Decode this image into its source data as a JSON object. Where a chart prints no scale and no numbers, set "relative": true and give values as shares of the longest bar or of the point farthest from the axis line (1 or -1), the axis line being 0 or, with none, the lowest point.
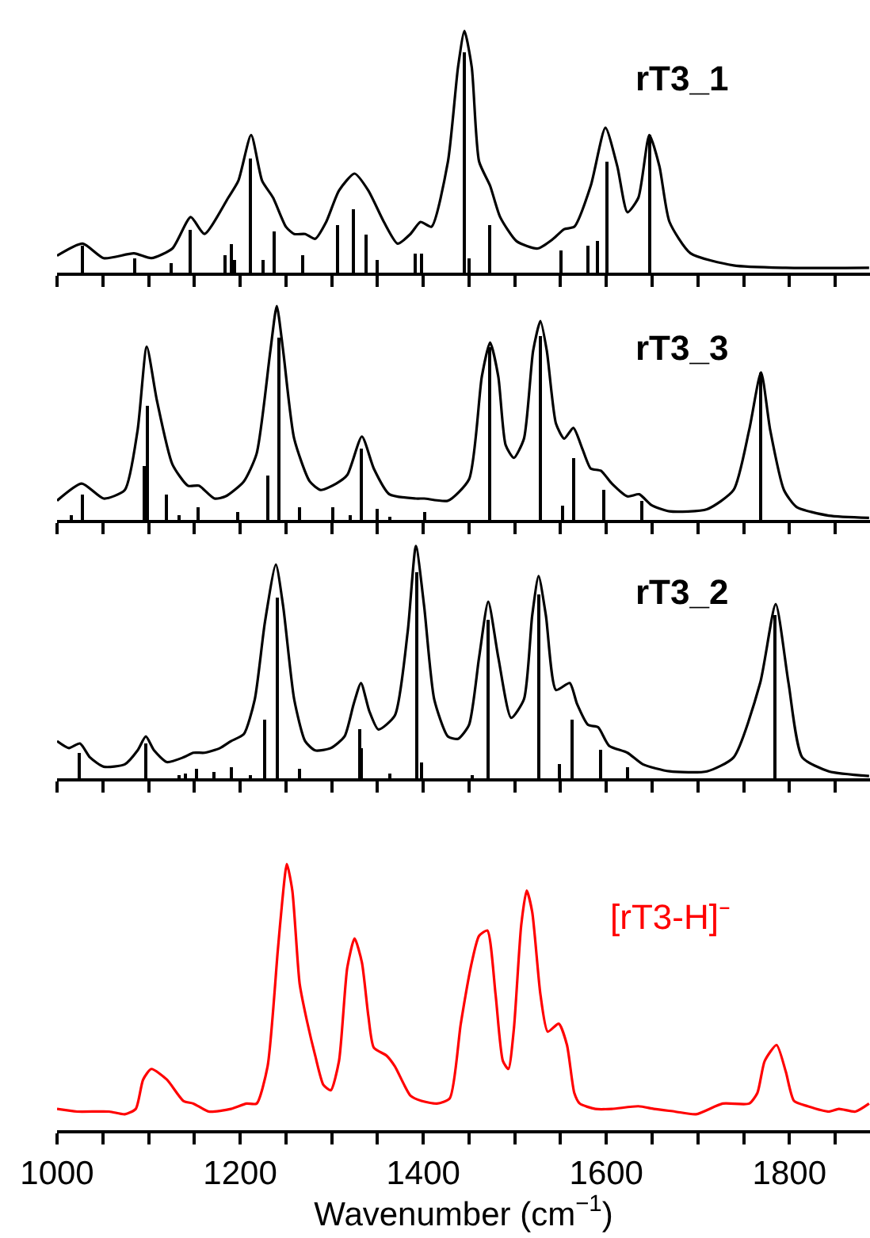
{
  "chart_data": [
    {
      "type": "line",
      "relative": true,
      "xlim": [
        1000,
        1888
      ],
      "xticks": [
        1000,
        {
          "value": 1050,
          "label": null
        },
        {
          "value": 1100,
          "label": null
        },
        {
          "value": 1150,
          "label": null
        },
        {
          "value": 1200,
          "label": null
        },
        {
          "value": 1250,
          "label": null
        },
        {
          "value": 1300,
          "label": null
        },
        {
          "value": 1350,
          "label": null
        },
        {
          "value": 1400,
          "label": null
        },
        {
          "value": 1450,
          "label": null
        },
        {
          "value": 1500,
          "label": null
        },
        {
          "value": 1550,
          "label": null
        },
        {
          "value": 1600,
          "label": null
        },
        {
          "value": 1650,
          "label": null
        },
        {
          "value": 1700,
          "label": null
        },
        {
          "value": 1750,
          "label": null
        },
        {
          "value": 1800,
          "label": null
        },
        {
          "value": 1850,
          "label": null
        }
      ],
      "tick_labels": false,
      "legend": false,
      "series": [
        {
          "name": "rT3_1",
          "color": "#000000",
          "x": [
            1000,
            1028,
            1051,
            1084,
            1103,
            1126,
            1146,
            1161,
            1187,
            1198,
            1212,
            1224,
            1236,
            1250,
            1259,
            1271,
            1282,
            1294,
            1308,
            1325,
            1340,
            1357,
            1372,
            1386,
            1397,
            1409,
            1427,
            1438,
            1445,
            1453,
            1461,
            1473,
            1484,
            1502,
            1525,
            1542,
            1554,
            1565,
            1583,
            1599,
            1612,
            1623,
            1635,
            1647,
            1658,
            1669,
            1692,
            1739,
            1796,
            1887
          ],
          "values": [
            0.07,
            0.12,
            0.06,
            0.08,
            0.06,
            0.1,
            0.23,
            0.16,
            0.31,
            0.38,
            0.57,
            0.38,
            0.31,
            0.19,
            0.16,
            0.16,
            0.14,
            0.21,
            0.34,
            0.41,
            0.34,
            0.21,
            0.12,
            0.16,
            0.21,
            0.19,
            0.46,
            0.85,
            1,
            0.85,
            0.46,
            0.36,
            0.23,
            0.13,
            0.1,
            0.14,
            0.18,
            0.19,
            0.36,
            0.6,
            0.44,
            0.25,
            0.31,
            0.57,
            0.44,
            0.21,
            0.08,
            0.03,
            0.02,
            0.02
          ]
        },
        {
          "type": "bar",
          "color": "#000000",
          "x": [
            1028,
            1084,
            1124,
            1146,
            1184,
            1190,
            1194,
            1212,
            1225,
            1237,
            1269,
            1306,
            1324,
            1338,
            1350,
            1392,
            1398,
            1445,
            1450,
            1473,
            1551,
            1580,
            1591,
            1601,
            1648
          ],
          "values": [
            0.11,
            0.06,
            0.04,
            0.18,
            0.07,
            0.12,
            0.05,
            0.47,
            0.05,
            0.17,
            0.07,
            0.2,
            0.26,
            0.16,
            0.05,
            0.08,
            0.08,
            0.91,
            0.06,
            0.2,
            0.09,
            0.11,
            0.13,
            0.46,
            0.57
          ]
        }
      ]
    },
    {
      "type": "line",
      "relative": true,
      "xlim": [
        1000,
        1888
      ],
      "xticks": [
        1000,
        {
          "value": 1050,
          "label": null
        },
        {
          "value": 1100,
          "label": null
        },
        {
          "value": 1150,
          "label": null
        },
        {
          "value": 1200,
          "label": null
        },
        {
          "value": 1250,
          "label": null
        },
        {
          "value": 1300,
          "label": null
        },
        {
          "value": 1350,
          "label": null
        },
        {
          "value": 1400,
          "label": null
        },
        {
          "value": 1450,
          "label": null
        },
        {
          "value": 1500,
          "label": null
        },
        {
          "value": 1550,
          "label": null
        },
        {
          "value": 1600,
          "label": null
        },
        {
          "value": 1650,
          "label": null
        },
        {
          "value": 1700,
          "label": null
        },
        {
          "value": 1750,
          "label": null
        },
        {
          "value": 1800,
          "label": null
        },
        {
          "value": 1850,
          "label": null
        }
      ],
      "tick_labels": false,
      "legend": false,
      "series": [
        {
          "name": "rT3_3",
          "color": "#000000",
          "x": [
            1000,
            1027,
            1051,
            1074,
            1088,
            1098,
            1109,
            1126,
            1143,
            1155,
            1172,
            1184,
            1204,
            1218,
            1233,
            1240,
            1247,
            1259,
            1276,
            1288,
            1305,
            1317,
            1333,
            1346,
            1363,
            1392,
            1401,
            1427,
            1450,
            1464,
            1473,
            1482,
            1490,
            1499,
            1510,
            1520,
            1528,
            1535,
            1545,
            1554,
            1564,
            1574,
            1583,
            1594,
            1606,
            1623,
            1636,
            1649,
            1669,
            1710,
            1739,
            1756,
            1769,
            1779,
            1794,
            1808,
            1843,
            1887
          ],
          "values": [
            0.09,
            0.17,
            0.1,
            0.14,
            0.42,
            0.81,
            0.56,
            0.26,
            0.16,
            0.16,
            0.1,
            0.11,
            0.18,
            0.31,
            0.79,
            1,
            0.79,
            0.38,
            0.18,
            0.14,
            0.17,
            0.21,
            0.39,
            0.24,
            0.12,
            0.1,
            0.1,
            0.09,
            0.19,
            0.67,
            0.83,
            0.67,
            0.35,
            0.29,
            0.38,
            0.79,
            0.93,
            0.79,
            0.45,
            0.38,
            0.43,
            0.33,
            0.24,
            0.23,
            0.17,
            0.11,
            0.12,
            0.07,
            0.04,
            0.05,
            0.14,
            0.42,
            0.69,
            0.42,
            0.14,
            0.06,
            0.02,
            0.01
          ]
        },
        {
          "type": "bar",
          "color": "#000000",
          "x": [
            1015,
            1027,
            1095,
            1098,
            1119,
            1133,
            1154,
            1197,
            1230,
            1242,
            1265,
            1301,
            1321,
            1333,
            1349,
            1363,
            1401,
            1473,
            1528,
            1553,
            1565,
            1597,
            1638,
            1769
          ],
          "values": [
            0.02,
            0.12,
            0.25,
            0.53,
            0.12,
            0.02,
            0.06,
            0.04,
            0.21,
            0.85,
            0.06,
            0.06,
            0.02,
            0.33,
            0.05,
            0.01,
            0.04,
            0.81,
            0.86,
            0.07,
            0.29,
            0.14,
            0.09,
            0.69
          ]
        }
      ]
    },
    {
      "type": "line",
      "relative": true,
      "xlim": [
        1000,
        1888
      ],
      "xticks": [
        1000,
        {
          "value": 1050,
          "label": null
        },
        {
          "value": 1100,
          "label": null
        },
        {
          "value": 1150,
          "label": null
        },
        {
          "value": 1200,
          "label": null
        },
        {
          "value": 1250,
          "label": null
        },
        {
          "value": 1300,
          "label": null
        },
        {
          "value": 1350,
          "label": null
        },
        {
          "value": 1400,
          "label": null
        },
        {
          "value": 1450,
          "label": null
        },
        {
          "value": 1500,
          "label": null
        },
        {
          "value": 1550,
          "label": null
        },
        {
          "value": 1600,
          "label": null
        },
        {
          "value": 1650,
          "label": null
        },
        {
          "value": 1700,
          "label": null
        },
        {
          "value": 1750,
          "label": null
        },
        {
          "value": 1800,
          "label": null
        },
        {
          "value": 1850,
          "label": null
        }
      ],
      "tick_labels": false,
      "legend": false,
      "series": [
        {
          "name": "rT3_2",
          "color": "#000000",
          "x": [
            1000,
            1013,
            1025,
            1036,
            1051,
            1074,
            1088,
            1097,
            1106,
            1120,
            1138,
            1149,
            1161,
            1178,
            1190,
            1204,
            1216,
            1227,
            1239,
            1247,
            1259,
            1271,
            1282,
            1299,
            1314,
            1324,
            1332,
            1341,
            1351,
            1369,
            1383,
            1392,
            1401,
            1412,
            1427,
            1438,
            1450,
            1461,
            1471,
            1482,
            1496,
            1510,
            1519,
            1526,
            1534,
            1545,
            1560,
            1568,
            1580,
            1591,
            1603,
            1623,
            1640,
            1669,
            1710,
            1739,
            1768,
            1785,
            1799,
            1814,
            1843,
            1887
          ],
          "values": [
            0.16,
            0.13,
            0.15,
            0.09,
            0.05,
            0.06,
            0.12,
            0.18,
            0.12,
            0.07,
            0.09,
            0.11,
            0.11,
            0.13,
            0.16,
            0.19,
            0.34,
            0.67,
            0.92,
            0.74,
            0.34,
            0.16,
            0.12,
            0.13,
            0.18,
            0.32,
            0.41,
            0.29,
            0.21,
            0.27,
            0.63,
            1,
            0.74,
            0.34,
            0.18,
            0.17,
            0.23,
            0.52,
            0.76,
            0.52,
            0.26,
            0.34,
            0.7,
            0.87,
            0.7,
            0.38,
            0.41,
            0.32,
            0.23,
            0.22,
            0.14,
            0.11,
            0.06,
            0.03,
            0.03,
            0.09,
            0.41,
            0.75,
            0.41,
            0.09,
            0.03,
            0.01
          ]
        },
        {
          "type": "bar",
          "color": "#000000",
          "x": [
            1025,
            1097,
            1133,
            1140,
            1152,
            1171,
            1190,
            1211,
            1226,
            1240,
            1265,
            1330,
            1333,
            1364,
            1393,
            1399,
            1454,
            1471,
            1526,
            1549,
            1563,
            1593,
            1623,
            1785
          ],
          "values": [
            0.11,
            0.15,
            0.01,
            0.02,
            0.04,
            0.03,
            0.05,
            0.01,
            0.25,
            0.78,
            0.04,
            0.21,
            0.13,
            0.02,
            0.89,
            0.07,
            0.01,
            0.68,
            0.79,
            0.06,
            0.25,
            0.12,
            0.05,
            0.7
          ]
        }
      ]
    },
    {
      "type": "line",
      "relative": true,
      "xlabel": "Wavenumber (cm$^{−1}$)",
      "xlim": [
        1000,
        1888
      ],
      "xticks": [
        1000,
        {
          "value": 1050,
          "label": null
        },
        {
          "value": 1100,
          "label": null
        },
        {
          "value": 1150,
          "label": null
        },
        1200,
        {
          "value": 1250,
          "label": null
        },
        {
          "value": 1300,
          "label": null
        },
        {
          "value": 1350,
          "label": null
        },
        1400,
        {
          "value": 1450,
          "label": null
        },
        {
          "value": 1500,
          "label": null
        },
        {
          "value": 1550,
          "label": null
        },
        1600,
        {
          "value": 1650,
          "label": null
        },
        {
          "value": 1700,
          "label": null
        },
        {
          "value": 1750,
          "label": null
        },
        1800,
        {
          "value": 1850,
          "label": null
        }
      ],
      "tick_labels": "x",
      "legend": false,
      "series": [
        {
          "name": "[rT3-H]⁻",
          "color": "#ff0000",
          "x": [
            1000,
            1022,
            1057,
            1074,
            1086,
            1094,
            1103,
            1120,
            1138,
            1149,
            1166,
            1190,
            1207,
            1218,
            1230,
            1241,
            1246,
            1251,
            1257,
            1265,
            1273,
            1282,
            1291,
            1299,
            1308,
            1317,
            1325,
            1333,
            1340,
            1346,
            1360,
            1369,
            1386,
            1398,
            1415,
            1429,
            1441,
            1453,
            1461,
            1470,
            1479,
            1487,
            1493,
            1499,
            1507,
            1513,
            1519,
            1528,
            1536,
            1548,
            1557,
            1565,
            1571,
            1588,
            1606,
            1635,
            1652,
            1675,
            1698,
            1727,
            1756,
            1765,
            1773,
            1786,
            1796,
            1805,
            1820,
            1843,
            1854,
            1872,
            1887
          ],
          "values": [
            0.08,
            0.07,
            0.07,
            0.06,
            0.08,
            0.19,
            0.23,
            0.19,
            0.11,
            0.1,
            0.07,
            0.08,
            0.1,
            0.1,
            0.24,
            0.67,
            0.86,
            1,
            0.9,
            0.55,
            0.41,
            0.28,
            0.17,
            0.15,
            0.26,
            0.61,
            0.72,
            0.63,
            0.43,
            0.31,
            0.28,
            0.24,
            0.13,
            0.11,
            0.1,
            0.12,
            0.4,
            0.63,
            0.73,
            0.75,
            0.51,
            0.26,
            0.23,
            0.38,
            0.77,
            0.9,
            0.82,
            0.51,
            0.37,
            0.4,
            0.32,
            0.14,
            0.1,
            0.08,
            0.08,
            0.09,
            0.08,
            0.07,
            0.06,
            0.1,
            0.1,
            0.14,
            0.26,
            0.32,
            0.22,
            0.11,
            0.09,
            0.07,
            0.08,
            0.07,
            0.1
          ]
        }
      ]
    }
  ]
}
